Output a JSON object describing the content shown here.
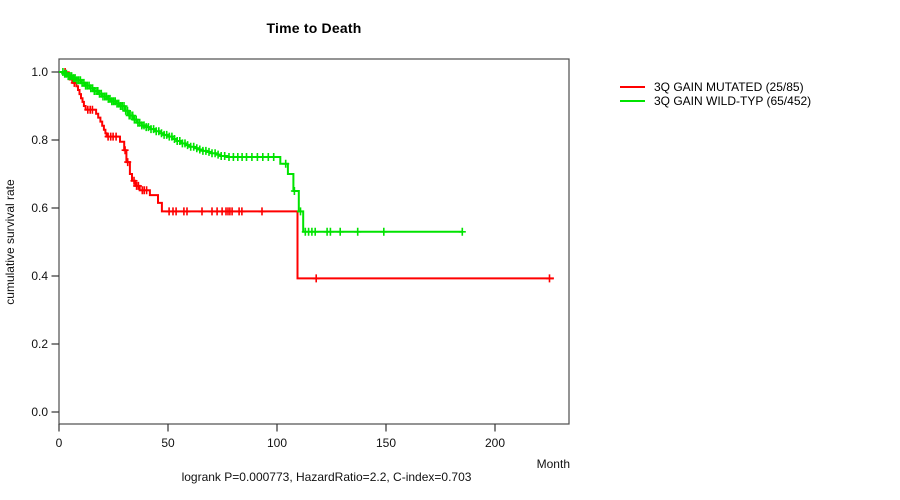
{
  "title": "Time to Death",
  "footer": "logrank P=0.000773, HazardRatio=2.2, C-index=0.703",
  "chart_data": {
    "type": "line",
    "subtype": "kaplan-meier-step-curves",
    "title": "Time to Death",
    "xlabel": "Month",
    "ylabel": "cumulative survival rate",
    "xlim": [
      0,
      234
    ],
    "ylim": [
      0.0,
      1.0
    ],
    "grid": false,
    "legend_position": "right-of-plot",
    "x_ticks": [
      {
        "value": 0,
        "label": "0"
      },
      {
        "value": 50,
        "label": "50"
      },
      {
        "value": 100,
        "label": "100"
      },
      {
        "value": 150,
        "label": "150"
      },
      {
        "value": 200,
        "label": "200"
      }
    ],
    "y_ticks": [
      {
        "value": 1.0,
        "label": "1.0"
      },
      {
        "value": 0.8,
        "label": "0.8"
      },
      {
        "value": 0.6,
        "label": "0.6"
      },
      {
        "value": 0.4,
        "label": "0.4"
      },
      {
        "value": 0.2,
        "label": "0.2"
      },
      {
        "value": 0.0,
        "label": "0.0"
      }
    ],
    "series": [
      {
        "name": "3Q GAIN MUTATED (25/85)",
        "color": "#ff0000",
        "end_month": 227,
        "steps": [
          [
            0,
            1.0
          ],
          [
            3,
            0.99
          ],
          [
            5,
            0.978
          ],
          [
            6.5,
            0.968
          ],
          [
            8,
            0.958
          ],
          [
            8.7,
            0.947
          ],
          [
            9.4,
            0.935
          ],
          [
            10.1,
            0.923
          ],
          [
            10.8,
            0.912
          ],
          [
            11.4,
            0.9
          ],
          [
            12.2,
            0.889
          ],
          [
            17,
            0.877
          ],
          [
            18,
            0.866
          ],
          [
            19,
            0.854
          ],
          [
            19.8,
            0.842
          ],
          [
            20.6,
            0.83
          ],
          [
            21.3,
            0.82
          ],
          [
            21.8,
            0.81
          ],
          [
            28,
            0.795
          ],
          [
            29.9,
            0.77
          ],
          [
            30.9,
            0.735
          ],
          [
            32.5,
            0.7
          ],
          [
            33.5,
            0.68
          ],
          [
            35,
            0.665
          ],
          [
            37,
            0.652
          ],
          [
            41.7,
            0.638
          ],
          [
            45.4,
            0.615
          ],
          [
            47.2,
            0.59
          ],
          [
            109.4,
            0.393
          ]
        ],
        "censor_months": [
          2.8,
          4.6,
          6.0,
          7.0,
          13.2,
          14.3,
          15.3,
          22.5,
          23.7,
          24.8,
          26.2,
          30.3,
          31.5,
          34.4,
          35.6,
          36.4,
          38.2,
          39.1,
          40.2,
          50.5,
          52.3,
          53.7,
          57.3,
          58.7,
          65.6,
          70.2,
          72.5,
          74.8,
          76.6,
          77.5,
          78.4,
          79.4,
          82.6,
          83.9,
          93.1,
          118,
          225
        ]
      },
      {
        "name": "3Q GAIN WILD-TYP (65/452)",
        "color": "#00e300",
        "end_month": 185,
        "steps": [
          [
            0,
            1.0
          ],
          [
            2,
            0.995
          ],
          [
            4,
            0.988
          ],
          [
            6,
            0.982
          ],
          [
            8,
            0.976
          ],
          [
            10,
            0.968
          ],
          [
            12,
            0.96
          ],
          [
            14,
            0.952
          ],
          [
            16,
            0.944
          ],
          [
            18,
            0.936
          ],
          [
            20,
            0.928
          ],
          [
            22,
            0.921
          ],
          [
            24,
            0.914
          ],
          [
            26,
            0.907
          ],
          [
            28,
            0.9
          ],
          [
            30,
            0.886
          ],
          [
            32,
            0.872
          ],
          [
            34,
            0.86
          ],
          [
            36,
            0.851
          ],
          [
            38,
            0.843
          ],
          [
            40,
            0.838
          ],
          [
            42,
            0.832
          ],
          [
            44,
            0.826
          ],
          [
            46,
            0.82
          ],
          [
            48,
            0.815
          ],
          [
            50,
            0.81
          ],
          [
            52,
            0.803
          ],
          [
            54,
            0.797
          ],
          [
            56,
            0.79
          ],
          [
            58,
            0.785
          ],
          [
            60,
            0.78
          ],
          [
            62,
            0.776
          ],
          [
            64,
            0.772
          ],
          [
            66,
            0.768
          ],
          [
            68,
            0.765
          ],
          [
            70,
            0.761
          ],
          [
            72,
            0.757
          ],
          [
            74,
            0.753
          ],
          [
            77,
            0.75
          ],
          [
            101.5,
            0.73
          ],
          [
            105,
            0.7
          ],
          [
            107.5,
            0.65
          ],
          [
            110,
            0.59
          ],
          [
            112,
            0.53
          ]
        ],
        "censor_months": [
          1.8,
          2.6,
          3.4,
          4.2,
          5,
          5.8,
          6.6,
          7.4,
          8.2,
          9,
          9.8,
          10.6,
          11.4,
          12.2,
          13,
          13.8,
          14.6,
          15.4,
          16.2,
          17,
          17.8,
          18.6,
          19.4,
          20.2,
          21,
          21.8,
          22.6,
          23.4,
          24.2,
          25,
          25.8,
          26.6,
          27.4,
          28.2,
          29,
          29.8,
          30.6,
          31.4,
          32.2,
          33,
          33.8,
          34.6,
          35.4,
          36.2,
          37,
          38,
          39,
          40,
          41,
          42.2,
          43.4,
          44.6,
          45.8,
          47,
          48.2,
          49.4,
          50.6,
          51.8,
          53,
          54.2,
          55.4,
          56.6,
          57.8,
          59,
          60.4,
          61.8,
          63.2,
          64.6,
          66,
          67.4,
          68.8,
          70.2,
          71.6,
          73,
          74.4,
          76,
          78,
          80,
          82,
          84,
          86,
          88.5,
          91,
          93.5,
          96,
          98.5,
          104,
          108,
          110.8,
          113,
          114.5,
          116,
          117.5,
          123,
          124.5,
          129,
          137,
          149,
          185
        ]
      }
    ]
  },
  "style": {
    "box_color": "#4d4d4d",
    "tick_color": "#333333",
    "background": "#ffffff"
  }
}
